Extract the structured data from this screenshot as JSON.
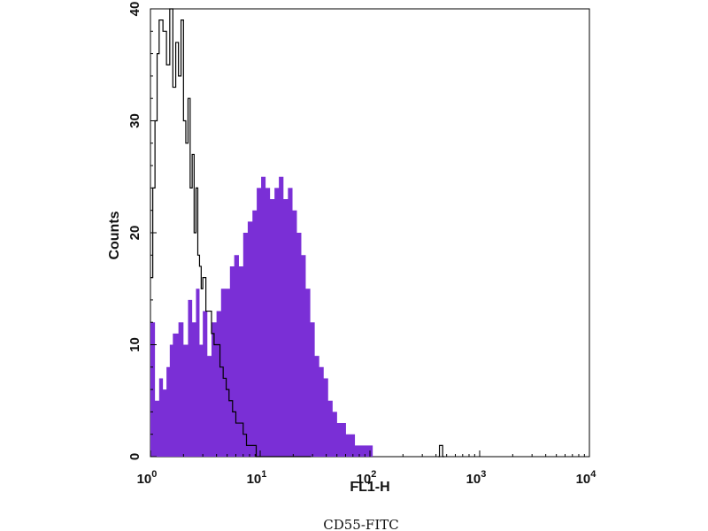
{
  "caption": "CD55-FITC",
  "chart_data": {
    "type": "histogram",
    "x_scale": "log",
    "xlim": [
      1,
      10000
    ],
    "ylim": [
      0,
      40
    ],
    "xlabel": "FL1-H",
    "ylabel": "Counts",
    "x_ticks": [
      {
        "base": "10",
        "exp": "0",
        "value": 1
      },
      {
        "base": "10",
        "exp": "1",
        "value": 10
      },
      {
        "base": "10",
        "exp": "2",
        "value": 100
      },
      {
        "base": "10",
        "exp": "3",
        "value": 1000
      },
      {
        "base": "10",
        "exp": "4",
        "value": 10000
      }
    ],
    "y_ticks": [
      {
        "label": "0",
        "value": 0
      },
      {
        "label": "10",
        "value": 10
      },
      {
        "label": "20",
        "value": 20
      },
      {
        "label": "30",
        "value": 30
      },
      {
        "label": "40",
        "value": 40
      }
    ],
    "series": [
      {
        "role": "stained",
        "style": "filled",
        "color": "#7a2fd6",
        "x": [
          1.0,
          1.1,
          1.2,
          1.3,
          1.4,
          1.5,
          1.6,
          1.8,
          2.0,
          2.2,
          2.4,
          2.6,
          2.8,
          3.0,
          3.3,
          3.6,
          4.0,
          4.4,
          4.8,
          5.3,
          5.8,
          6.4,
          7.0,
          7.7,
          8.5,
          9.3,
          10.2,
          11.2,
          12.3,
          13.5,
          14.8,
          16.3,
          17.9,
          19.7,
          21.6,
          23.7,
          26.0,
          28.6,
          31.4,
          34.5,
          37.9,
          41.6,
          45.7,
          50.2,
          55.1,
          60.5,
          66.5,
          73.0,
          80.2,
          88.1,
          96.7,
          106.0
        ],
        "y": [
          12,
          5,
          7,
          6,
          8,
          10,
          11,
          12,
          10,
          14,
          12,
          15,
          10,
          13,
          9,
          12,
          13,
          15,
          15,
          17,
          18,
          17,
          20,
          21,
          22,
          24,
          25,
          24,
          23,
          24,
          25,
          23,
          24,
          22,
          20,
          18,
          15,
          12,
          9,
          8,
          7,
          5,
          4,
          3,
          3,
          2,
          2,
          1,
          1,
          1,
          1,
          0
        ]
      },
      {
        "role": "isotype-control",
        "style": "outline",
        "color": "#000000",
        "x": [
          1.0,
          1.05,
          1.1,
          1.15,
          1.2,
          1.3,
          1.4,
          1.5,
          1.6,
          1.7,
          1.8,
          1.9,
          2.0,
          2.1,
          2.2,
          2.3,
          2.4,
          2.5,
          2.6,
          2.7,
          2.8,
          2.9,
          3.0,
          3.2,
          3.4,
          3.6,
          3.8,
          4.0,
          4.3,
          4.6,
          4.9,
          5.2,
          5.6,
          6.0,
          6.5,
          7.0,
          7.5,
          8.0,
          8.6,
          9.2,
          10.0,
          11.0,
          12.0,
          14.0,
          16.0,
          18.0,
          20.0,
          22.0,
          24.0,
          26.0,
          28.0
        ],
        "y": [
          16,
          24,
          30,
          36,
          39,
          38,
          35,
          40,
          33,
          37,
          34,
          39,
          30,
          28,
          32,
          24,
          27,
          20,
          24,
          18,
          17,
          15,
          16,
          13,
          13,
          11,
          10,
          10,
          8,
          7,
          6,
          5,
          4,
          3,
          3,
          2,
          1,
          1,
          1,
          0,
          0,
          0,
          0,
          0,
          0,
          0,
          0,
          0,
          0,
          0,
          0
        ]
      },
      {
        "role": "isotype-control-tail",
        "style": "outline",
        "color": "#000000",
        "x": [
          420,
          430,
          440,
          460
        ],
        "y": [
          0,
          1,
          1,
          0
        ]
      }
    ]
  }
}
